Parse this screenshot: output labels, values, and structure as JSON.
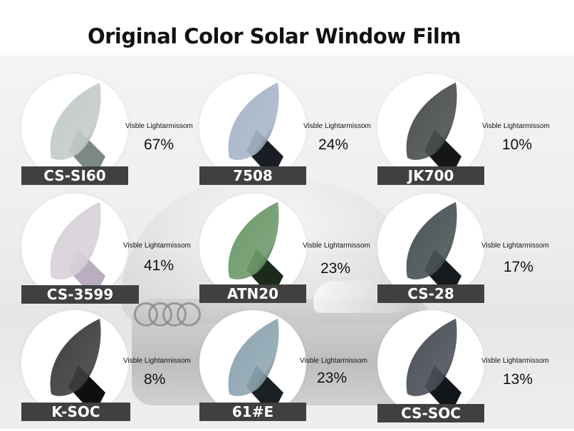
{
  "title": "Original Color Solar Window Film",
  "products": [
    {
      "code": "CS-SI60",
      "caption": "Visble Lightarmissom",
      "percent": "67%",
      "color": "#c4ccc9",
      "edge": "#7c8884"
    },
    {
      "code": "7508",
      "caption": "Visble Lightarmissom",
      "percent": "24%",
      "color": "#a9b7c9",
      "edge": "#1a1e24"
    },
    {
      "code": "JK700",
      "caption": "Visble Lightarmissom",
      "percent": "10%",
      "color": "#4c5150",
      "edge": "#151717"
    },
    {
      "code": "CS-3599",
      "caption": "Visble Lightarmissom",
      "percent": "41%",
      "color": "#d8d2d9",
      "edge": "#b9aec0"
    },
    {
      "code": "ATN20",
      "caption": "Visble Lightarmissom",
      "percent": "23%",
      "color": "#6f9a6c",
      "edge": "#1c2a1c"
    },
    {
      "code": "CS-28",
      "caption": "Visble Lightarmissom",
      "percent": "17%",
      "color": "#4a5356",
      "edge": "#161a1c"
    },
    {
      "code": "K-SOC",
      "caption": "Visble Lightarmissom",
      "percent": "8%",
      "color": "#3e3f3f",
      "edge": "#0e0f0f"
    },
    {
      "code": "61#E",
      "caption": "Visble Lightarmissom",
      "percent": "23%",
      "color": "#8ea6b2",
      "edge": "#1a2024"
    },
    {
      "code": "CS-SOC",
      "caption": "Visble Lightarmissom",
      "percent": "13%",
      "color": "#4c5159",
      "edge": "#12151a"
    }
  ]
}
